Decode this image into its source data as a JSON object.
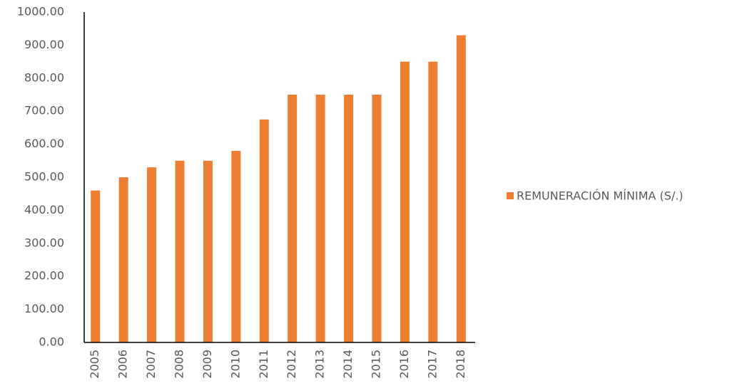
{
  "chart_data": {
    "type": "bar",
    "categories": [
      "2005",
      "2006",
      "2007",
      "2008",
      "2009",
      "2010",
      "2011",
      "2012",
      "2013",
      "2014",
      "2015",
      "2016",
      "2017",
      "2018"
    ],
    "series": [
      {
        "name": "REMUNERACIÓN MÍNIMA (S/.)",
        "color": "#ed7d31",
        "values": [
          460,
          500,
          530,
          550,
          550,
          580,
          675,
          750,
          750,
          750,
          750,
          850,
          850,
          930
        ]
      }
    ],
    "ylim": [
      0,
      1000
    ],
    "yticks": [
      {
        "value": 0,
        "label": "0.00"
      },
      {
        "value": 100,
        "label": "100.00"
      },
      {
        "value": 200,
        "label": "200.00"
      },
      {
        "value": 300,
        "label": "300.00"
      },
      {
        "value": 400,
        "label": "400.00"
      },
      {
        "value": 500,
        "label": "500.00"
      },
      {
        "value": 600,
        "label": "600.00"
      },
      {
        "value": 700,
        "label": "700.00"
      },
      {
        "value": 800,
        "label": "800.00"
      },
      {
        "value": 900,
        "label": "900.00"
      },
      {
        "value": 1000,
        "label": "1000.00"
      }
    ],
    "grid": false,
    "legend": "right"
  }
}
